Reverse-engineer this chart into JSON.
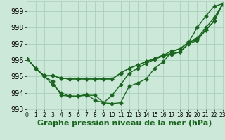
{
  "xlabel": "Graphe pression niveau de la mer (hPa)",
  "bg_color": "#cce8d8",
  "grid_color": "#aacfba",
  "line_color": "#1a6620",
  "xlim": [
    0,
    23
  ],
  "ylim": [
    993.0,
    999.6
  ],
  "yticks": [
    993,
    994,
    995,
    996,
    997,
    998,
    999
  ],
  "xticks": [
    0,
    1,
    2,
    3,
    4,
    5,
    6,
    7,
    8,
    9,
    10,
    11,
    12,
    13,
    14,
    15,
    16,
    17,
    18,
    19,
    20,
    21,
    22,
    23
  ],
  "series": [
    [
      996.1,
      995.5,
      995.0,
      994.7,
      993.85,
      993.8,
      993.8,
      993.85,
      993.85,
      993.4,
      993.35,
      993.4,
      994.4,
      994.6,
      994.85,
      995.5,
      995.9,
      996.5,
      996.7,
      997.1,
      998.0,
      998.7,
      999.3,
      999.45
    ],
    [
      996.1,
      995.5,
      995.05,
      995.05,
      994.9,
      994.85,
      994.85,
      994.85,
      994.85,
      994.85,
      994.85,
      995.2,
      995.5,
      995.7,
      995.9,
      996.1,
      996.3,
      996.4,
      996.5,
      997.0,
      997.2,
      997.85,
      998.4,
      999.45
    ],
    [
      996.1,
      995.5,
      995.05,
      995.05,
      994.9,
      994.85,
      994.85,
      994.85,
      994.85,
      994.85,
      994.85,
      995.2,
      995.5,
      995.7,
      995.9,
      996.1,
      996.3,
      996.55,
      996.7,
      997.1,
      997.35,
      998.0,
      998.6,
      999.45
    ],
    [
      996.1,
      995.5,
      995.05,
      994.5,
      994.0,
      993.8,
      993.8,
      993.9,
      993.55,
      993.4,
      993.85,
      994.5,
      995.2,
      995.5,
      995.8,
      996.05,
      996.25,
      996.35,
      996.5,
      997.05,
      997.3,
      997.85,
      998.4,
      999.45
    ]
  ],
  "marker": "D",
  "markersize": 2.5,
  "linewidth": 1.0,
  "xlabel_fontsize": 8,
  "ytick_fontsize": 7,
  "xtick_fontsize": 5.5
}
